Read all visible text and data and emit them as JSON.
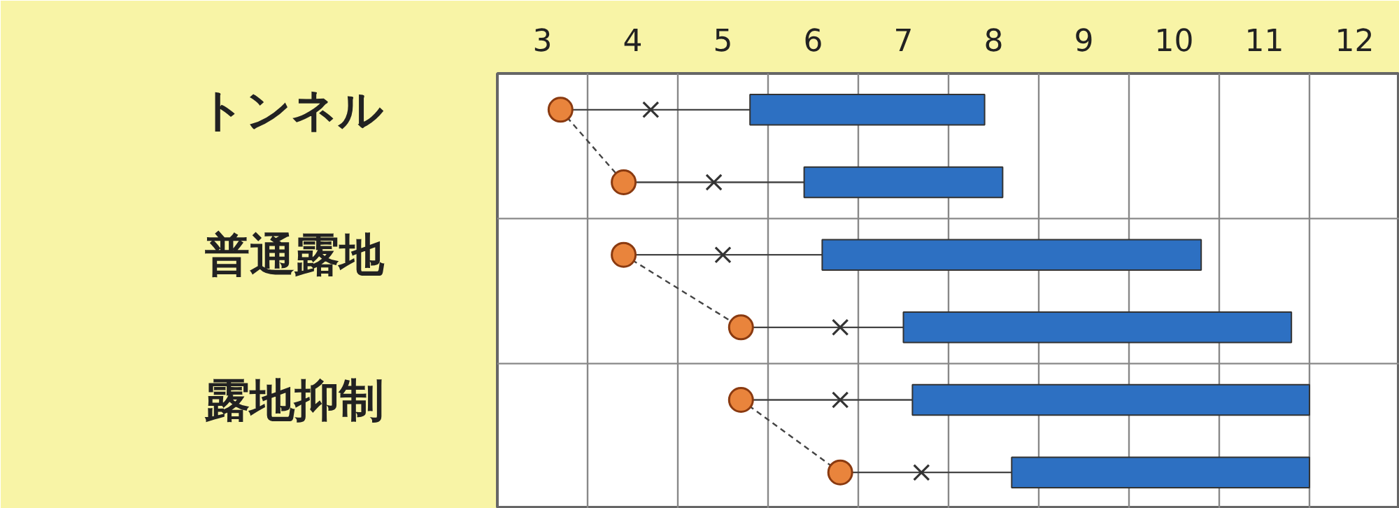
{
  "chart_data": {
    "type": "bar",
    "orientation": "horizontal",
    "categories": [
      "トンネル",
      null,
      "普通露地",
      null,
      "露地抑制",
      null
    ],
    "xlim": [
      2.5,
      12.5
    ],
    "xticks": [
      3,
      4,
      5,
      6,
      7,
      8,
      9,
      10,
      11,
      12
    ],
    "grid": true,
    "series": [
      {
        "color": "#2d70c2",
        "base": [
          5.3,
          5.9,
          6.1,
          7.0,
          7.1,
          8.2
        ],
        "values": [
          2.6,
          2.2,
          4.2,
          4.3,
          4.4,
          3.3
        ]
      },
      {
        "type": "scatter",
        "marker": "circle",
        "color": "#e9843c",
        "values": [
          3.2,
          3.9,
          3.9,
          5.2,
          5.2,
          6.3
        ],
        "errors": [
          [
            3.2,
            5.3
          ],
          [
            3.9,
            5.9
          ],
          [
            3.9,
            6.1
          ],
          [
            5.2,
            7.0
          ],
          [
            5.2,
            7.1
          ],
          [
            6.3,
            8.2
          ]
        ]
      },
      {
        "type": "line",
        "line_style": "dashed",
        "color": "#444444",
        "values": [
          3.2,
          3.9,
          null,
          null,
          null,
          null
        ]
      },
      {
        "type": "line",
        "line_style": "dashed",
        "color": "#444444",
        "values": [
          null,
          null,
          3.9,
          5.2,
          null,
          null
        ]
      },
      {
        "type": "line",
        "line_style": "dashed",
        "color": "#444444",
        "values": [
          null,
          null,
          null,
          null,
          5.2,
          6.3
        ]
      },
      {
        "type": "scatter",
        "marker": "cross",
        "color": "#333333",
        "values": [
          4.2,
          4.9,
          5.0,
          6.3,
          6.3,
          7.2
        ]
      }
    ]
  }
}
